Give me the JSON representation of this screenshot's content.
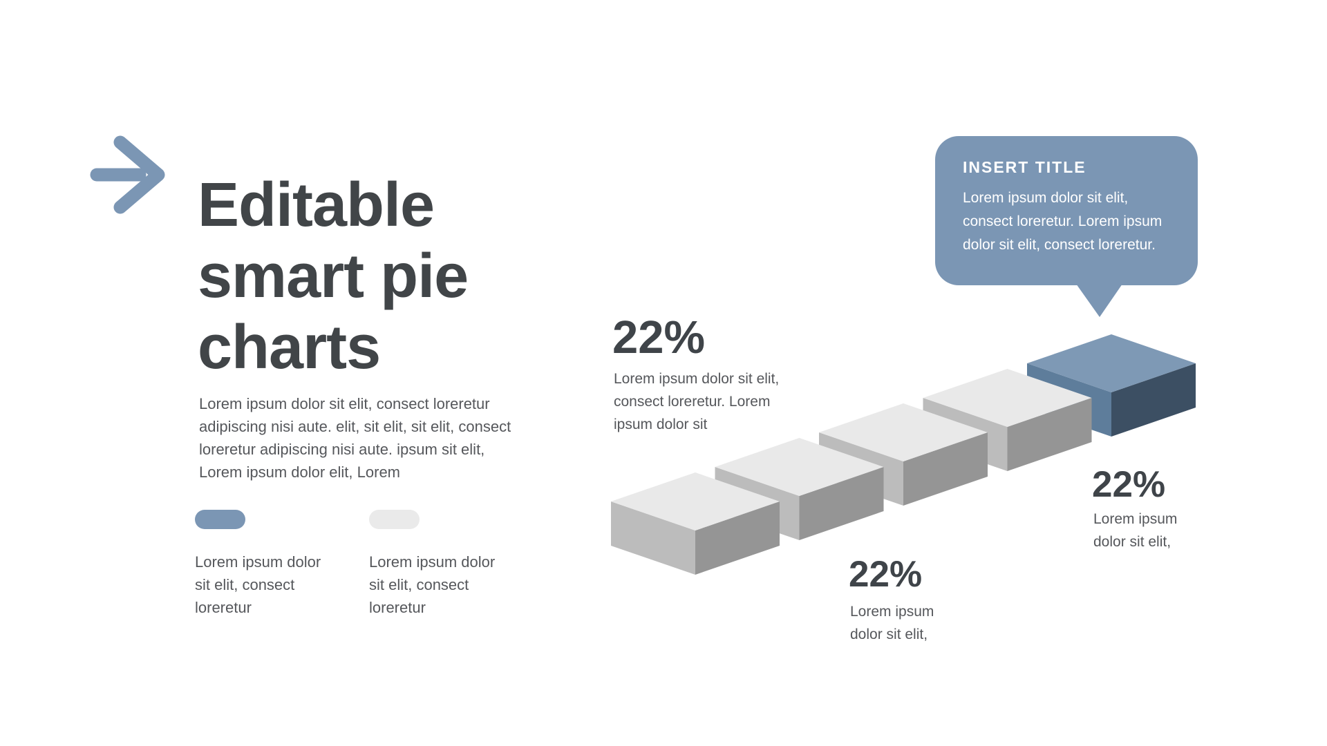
{
  "slide": {
    "title": "Editable smart pie charts",
    "description": "Lorem ipsum dolor sit elit, consect loreretur adipiscing nisi aute. elit, sit elit, sit elit, consect loreretur adipiscing nisi aute. ipsum sit elit, Lorem ipsum dolor elit, Lorem",
    "legend": [
      {
        "swatch": "blue",
        "label": "Lorem ipsum dolor sit elit, consect loreretur"
      },
      {
        "swatch": "gray",
        "label": "Lorem ipsum dolor sit elit, consect loreretur"
      }
    ]
  },
  "callout": {
    "title": "INSERT TITLE",
    "body": "Lorem ipsum dolor sit elit, consect loreretur. Lorem ipsum dolor sit elit, consect loreretur."
  },
  "chart_data": {
    "type": "bar",
    "subtype": "isometric-3d-step-blocks",
    "title": "Editable smart pie charts",
    "num_steps": 5,
    "highlighted_step": 5,
    "direction": "ascending-left-to-right",
    "labels": [
      {
        "value": "22%",
        "caption": "Lorem ipsum dolor sit elit, consect loreretur. Lorem ipsum dolor sit",
        "position": "upper-left"
      },
      {
        "value": "22%",
        "caption": "Lorem ipsum dolor sit elit,",
        "position": "bottom-center"
      },
      {
        "value": "22%",
        "caption": "Lorem ipsum dolor sit elit,",
        "position": "right"
      }
    ],
    "block_colors": {
      "default": {
        "top": "#e9e9e9",
        "left": "#bcbcbc",
        "right": "#959595"
      },
      "highlight": {
        "top": "#7e99b5",
        "left": "#5e7d9b",
        "right": "#3c4f63"
      }
    }
  },
  "colors": {
    "accent_blue": "#7b96b4",
    "callout_blue": "#7b96b4",
    "legend_gray": "#eaeaea",
    "heading_dark": "#414548",
    "body_text": "#55575b",
    "background": "#ffffff"
  }
}
